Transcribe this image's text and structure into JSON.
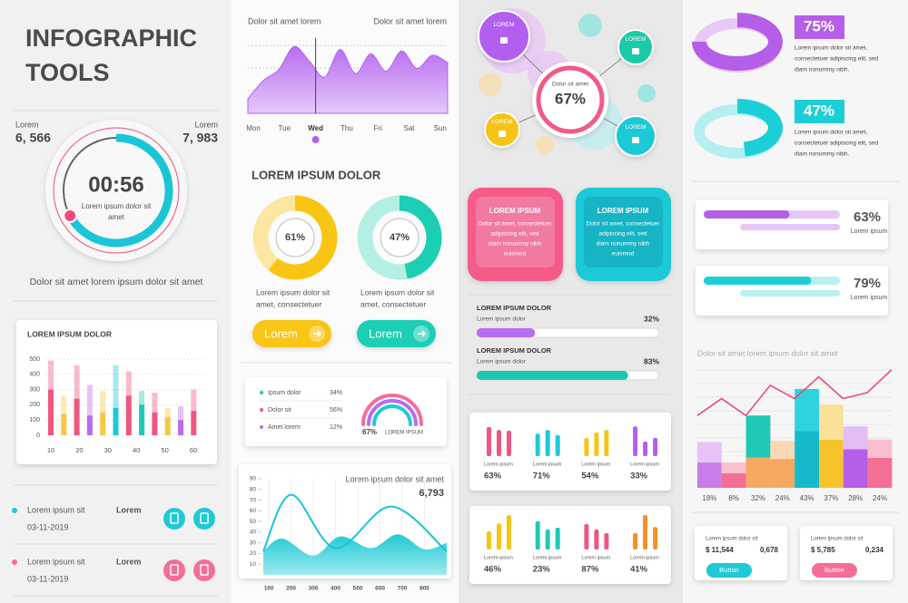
{
  "title": {
    "line1": "INFOGRAPHIC",
    "line2": "TOOLS"
  },
  "timer": {
    "left": {
      "label": "Lorem",
      "value": "6, 566"
    },
    "right": {
      "label": "Lorem",
      "value": "7, 983"
    },
    "time": "00:56",
    "caption": [
      "Lorem ipsum dolor sit",
      "amet"
    ],
    "progress": 67
  },
  "tagline": "Dolor sit amet lorem ipsum dolor sit amet",
  "bar_card": {
    "title": "LOREM IPSUM DOLOR",
    "ylim": [
      0,
      500
    ],
    "yticks": [
      0,
      100,
      200,
      300,
      400,
      500
    ],
    "xticks": [
      "10",
      "20",
      "30",
      "40",
      "50",
      "60"
    ],
    "bars": [
      {
        "values": [
          300,
          190
        ],
        "color": "#ef5680"
      },
      {
        "values": [
          140,
          120
        ],
        "color": "#f7c845"
      },
      {
        "values": [
          240,
          220
        ],
        "color": "#ef5680"
      },
      {
        "values": [
          130,
          200
        ],
        "color": "#b86cf0"
      },
      {
        "values": [
          150,
          140
        ],
        "color": "#f7c845"
      },
      {
        "values": [
          180,
          280
        ],
        "color": "#1fc9d6"
      },
      {
        "values": [
          260,
          160
        ],
        "color": "#ef5680"
      },
      {
        "values": [
          200,
          90
        ],
        "color": "#1fc9b5"
      },
      {
        "values": [
          150,
          130
        ],
        "color": "#ef5680"
      },
      {
        "values": [
          120,
          60
        ],
        "color": "#f7c845"
      },
      {
        "values": [
          100,
          90
        ],
        "color": "#b86cf0"
      },
      {
        "values": [
          160,
          140
        ],
        "color": "#ef5680"
      }
    ]
  },
  "list": [
    {
      "name": "Lorem ipsum sit",
      "date": "03-11-2019",
      "label": "Lorem",
      "color": "#1fc9d6"
    },
    {
      "name": "Lorem ipsum sit",
      "date": "03-11-2019",
      "label": "Lorem",
      "color": "#f56e96"
    }
  ],
  "wave": {
    "label_left": "Dolor sit amet lorem",
    "label_right": "Dolor sit amet lorem",
    "days": [
      "Mon",
      "Tue",
      "Wed",
      "Thu",
      "Fri",
      "Sat",
      "Sun"
    ],
    "active": 2,
    "ylim": [
      0,
      100
    ],
    "values": [
      20,
      45,
      60,
      92,
      72,
      50,
      88,
      55,
      82,
      58,
      86,
      62,
      80,
      70
    ]
  },
  "donuts": {
    "title": "LOREM IPSUM DOLOR",
    "items": [
      {
        "value": 61,
        "label": "61%",
        "color": "#f9c514",
        "track": "#fbe7a2",
        "caption": [
          "Lorem ipsum dolor sit",
          "amet, consectetuer"
        ],
        "button": "Lorem"
      },
      {
        "value": 47,
        "label": "47%",
        "color": "#1ccfb4",
        "track": "#b4efe4",
        "caption": [
          "Lorem ipsum dolor sit",
          "amet, consectetuer"
        ],
        "button": "Lorem"
      }
    ]
  },
  "legend_card": {
    "items": [
      {
        "name": "Ipsum dolor",
        "value": "34%",
        "color": "#1fc9b5"
      },
      {
        "name": "Dolor sit",
        "value": "56%",
        "color": "#ef5680"
      },
      {
        "name": "Amet lorem",
        "value": "12%",
        "color": "#b86cf0"
      }
    ],
    "gauge_value": "67%",
    "gauge_label": "LOREM IPSUM"
  },
  "line_card": {
    "title": "Lorem ipsum dolor sit amet",
    "total": "6,793",
    "ylim": [
      0,
      90
    ],
    "yticks": [
      10,
      20,
      30,
      40,
      50,
      60,
      70,
      80,
      90
    ],
    "xlim": [
      75,
      900
    ],
    "xticks": [
      100,
      200,
      300,
      400,
      500,
      600,
      700,
      800
    ],
    "line": {
      "x": [
        75,
        200,
        400,
        650,
        900
      ],
      "values": [
        22,
        75,
        25,
        64,
        22
      ]
    },
    "area": {
      "x": [
        75,
        160,
        300,
        420,
        560,
        680,
        800,
        900
      ],
      "values": [
        22,
        34,
        18,
        36,
        25,
        38,
        24,
        30
      ]
    }
  },
  "bubbles": {
    "center_label": "Dolor sit amet",
    "center_value": "67%",
    "nodes": [
      "LOREM",
      "LOREM",
      "LOREM",
      "LOREM"
    ]
  },
  "cards": [
    {
      "title": "LOREM IPSUM",
      "text": [
        "Dolor sit amet, consectetuer",
        "adipiscing elit, sed",
        "diam nonummy nibh",
        "euismod"
      ]
    },
    {
      "title": "LOREM IPSUM",
      "text": [
        "Dolor sit amet, consectetuer",
        "adipiscing elit, sed",
        "diam nonummy nibh",
        "euismod"
      ]
    }
  ],
  "progress": [
    {
      "title": "LOREM IPSUM DOLOR",
      "label": "Lorem ipsum dolor",
      "value": 32,
      "value_label": "32%",
      "color": "#b86cf0"
    },
    {
      "title": "LOREM IPSUM DOLOR",
      "label": "Lorem ipsum dolor",
      "value": 83,
      "value_label": "83%",
      "color": "#1dc9b0"
    }
  ],
  "bar_groups": [
    {
      "label": "Lorem ipsum",
      "value": "63%",
      "color": "#ef5680",
      "bars": [
        80,
        72,
        70
      ]
    },
    {
      "label": "Lorem ipsum",
      "value": "71%",
      "color": "#1fc9d6",
      "bars": [
        62,
        72,
        58
      ]
    },
    {
      "label": "Lorem ipsum",
      "value": "54%",
      "color": "#f6c417",
      "bars": [
        50,
        65,
        72
      ]
    },
    {
      "label": "Lorem ipsum",
      "value": "33%",
      "color": "#b25ff0",
      "bars": [
        82,
        40,
        50
      ]
    },
    {
      "label": "Lorem ipsum",
      "value": "46%",
      "color": "#f6c417",
      "bars": [
        50,
        72,
        95
      ]
    },
    {
      "label": "Lorem ipsum",
      "value": "23%",
      "color": "#1fc9b5",
      "bars": [
        78,
        55,
        60
      ]
    },
    {
      "label": "Lorem ipsum",
      "value": "87%",
      "color": "#ef5680",
      "bars": [
        70,
        55,
        45
      ]
    },
    {
      "label": "Lorem ipsum",
      "value": "41%",
      "color": "#f3902a",
      "bars": [
        45,
        95,
        62
      ]
    }
  ],
  "rings": [
    {
      "value": 75,
      "label": "75%",
      "color": "#b55ee8",
      "light": "#e9c7f7",
      "text": [
        "Lorem ipsum dolor sit amet,",
        "consectetuer adipiscing elit, sed",
        "diam nonummy nibh."
      ]
    },
    {
      "value": 47,
      "label": "47%",
      "color": "#1ccfd6",
      "light": "#b5eff2",
      "text": [
        "Lorem ipsum dolor sit amet,",
        "consectetuer adipiscing elit, sed",
        "diam nonummy nibh."
      ]
    }
  ],
  "stat_bars": [
    {
      "value": 63,
      "label": "63%",
      "caption": "Lorem ipsum",
      "color": "#b55ee8",
      "light": "#e5c6f6"
    },
    {
      "value": 79,
      "label": "79%",
      "caption": "Lorem ipsum",
      "color": "#1ccfd6",
      "light": "#b8f0f2"
    }
  ],
  "combo": {
    "title": "Dolor sit amet lorem ipsum dolor sit amet",
    "ylim": [
      0,
      100
    ],
    "bars": [
      {
        "label": "18%",
        "values": [
          21,
          17
        ],
        "colors": [
          "#c77de9",
          "#e7c2f6"
        ]
      },
      {
        "label": "8%",
        "values": [
          12,
          9
        ],
        "colors": [
          "#f56e96",
          "#f9c0d0"
        ]
      },
      {
        "label": "32%",
        "values": [
          25,
          35
        ],
        "colors": [
          "#f7a961",
          "#1fc9b5"
        ]
      },
      {
        "label": "24%",
        "values": [
          24,
          15
        ],
        "colors": [
          "#f7a961",
          "#fbd8b5"
        ]
      },
      {
        "label": "43%",
        "values": [
          47,
          35
        ],
        "colors": [
          "#16b9cc",
          "#2fd3e0"
        ]
      },
      {
        "label": "37%",
        "values": [
          40,
          29
        ],
        "colors": [
          "#f7c32b",
          "#fae19a"
        ]
      },
      {
        "label": "28%",
        "values": [
          32,
          19
        ],
        "colors": [
          "#b55ee8",
          "#e2bdf6"
        ]
      },
      {
        "label": "24%",
        "values": [
          25,
          15
        ],
        "colors": [
          "#f56e96",
          "#f9bfd0"
        ]
      }
    ],
    "line": {
      "values": [
        60,
        74,
        60,
        85,
        74,
        92,
        74,
        79,
        98
      ],
      "color": "#e8446e"
    }
  },
  "money_cards": [
    {
      "title": "Lorem ipsum dolor sit",
      "amount": "$ 11,544",
      "rate": "0,678",
      "button": "Button",
      "color": "#1fc9d6"
    },
    {
      "title": "Lorem ipsum dolor sit",
      "amount": "$ 5,785",
      "rate": "0,234",
      "button": "Button",
      "color": "#f56e96"
    }
  ]
}
